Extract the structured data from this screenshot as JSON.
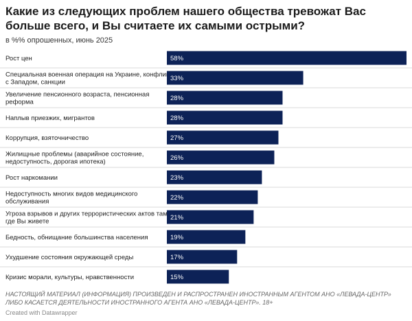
{
  "header": {
    "title": "Какие из следующих проблем нашего общества тревожат Вас больше всего, и Вы считаете их самыми острыми?",
    "subtitle": "в %% опрошенных, июнь 2025"
  },
  "footer": {
    "note": "НАСТОЯЩИЙ МАТЕРИАЛ (ИНФОРМАЦИЯ) ПРОИЗВЕДЕН И РАСПРОСТРАНЕН ИНОСТРАННЫМ АГЕНТОМ АНО «ЛЕВАДА-ЦЕНТР» ЛИБО КАСАЕТСЯ ДЕЯТЕЛЬНОСТИ ИНОСТРАННОГО АГЕНТА АНО «ЛЕВАДА-ЦЕНТР». 18+",
    "credit": "Created with Datawrapper"
  },
  "chart_data": {
    "type": "bar",
    "orientation": "horizontal",
    "categories": [
      [
        "Рост цен"
      ],
      [
        "Специальная военная операция на Украине, конфликт",
        "с Западом, санкции"
      ],
      [
        "Увеличение пенсионного возраста, пенсионная",
        "реформа"
      ],
      [
        "Наплыв приезжих, мигрантов"
      ],
      [
        "Коррупция, взяточничество"
      ],
      [
        "Жилищные проблемы (аварийное состояние,",
        "недоступность, дорогая ипотека)"
      ],
      [
        "Рост наркомании"
      ],
      [
        "Недоступность многих видов медицинского",
        "обслуживания"
      ],
      [
        "Угроза взрывов и других террористических актов там,",
        "где Вы живете"
      ],
      [
        "Бедность, обнищание большинства населения"
      ],
      [
        "Ухудшение состояния окружающей среды"
      ],
      [
        "Кризис морали, культуры, нравственности"
      ]
    ],
    "values": [
      58,
      33,
      28,
      28,
      27,
      26,
      23,
      22,
      21,
      19,
      17,
      15
    ],
    "value_labels": [
      "58%",
      "33%",
      "28%",
      "28%",
      "27%",
      "26%",
      "23%",
      "22%",
      "21%",
      "19%",
      "17%",
      "15%"
    ],
    "xlim": [
      0,
      58
    ],
    "bar_color": "#0d2257",
    "label_color": "#ffffff",
    "separator_color": "#d9d9d9",
    "grid": false,
    "legend": "none"
  }
}
